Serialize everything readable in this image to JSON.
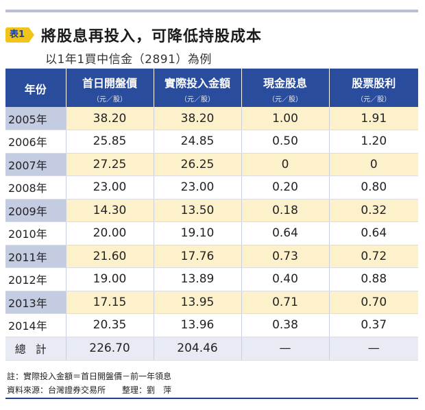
{
  "header": {
    "tag": "表1",
    "title": "將股息再投入，可降低持股成本",
    "subtitle": "以1年1買中信金（2891）為例"
  },
  "columns": [
    {
      "label": "年份",
      "unit": ""
    },
    {
      "label": "首日開盤價",
      "unit": "（元／股）"
    },
    {
      "label": "實際投入金額",
      "unit": "（元／股）"
    },
    {
      "label": "現金股息",
      "unit": "（元／股）"
    },
    {
      "label": "股票股利",
      "unit": "（元／股）"
    }
  ],
  "rows": [
    [
      "2005年",
      "38.20",
      "38.20",
      "1.00",
      "1.91"
    ],
    [
      "2006年",
      "25.85",
      "24.85",
      "0.50",
      "1.20"
    ],
    [
      "2007年",
      "27.25",
      "26.25",
      "0",
      "0"
    ],
    [
      "2008年",
      "23.00",
      "23.00",
      "0.20",
      "0.80"
    ],
    [
      "2009年",
      "14.30",
      "13.50",
      "0.18",
      "0.32"
    ],
    [
      "2010年",
      "20.00",
      "19.10",
      "0.64",
      "0.64"
    ],
    [
      "2011年",
      "21.60",
      "17.76",
      "0.73",
      "0.72"
    ],
    [
      "2012年",
      "19.00",
      "13.89",
      "0.40",
      "0.88"
    ],
    [
      "2013年",
      "17.15",
      "13.95",
      "0.71",
      "0.70"
    ],
    [
      "2014年",
      "20.35",
      "13.96",
      "0.38",
      "0.37"
    ]
  ],
  "total": [
    "總計",
    "226.70",
    "204.46",
    "—",
    "—"
  ],
  "notes": {
    "note": "註：實際投入金額＝首日開盤價－前一年領息",
    "source": "資料來源：台灣證券交易所　　整理：劉　萍"
  }
}
